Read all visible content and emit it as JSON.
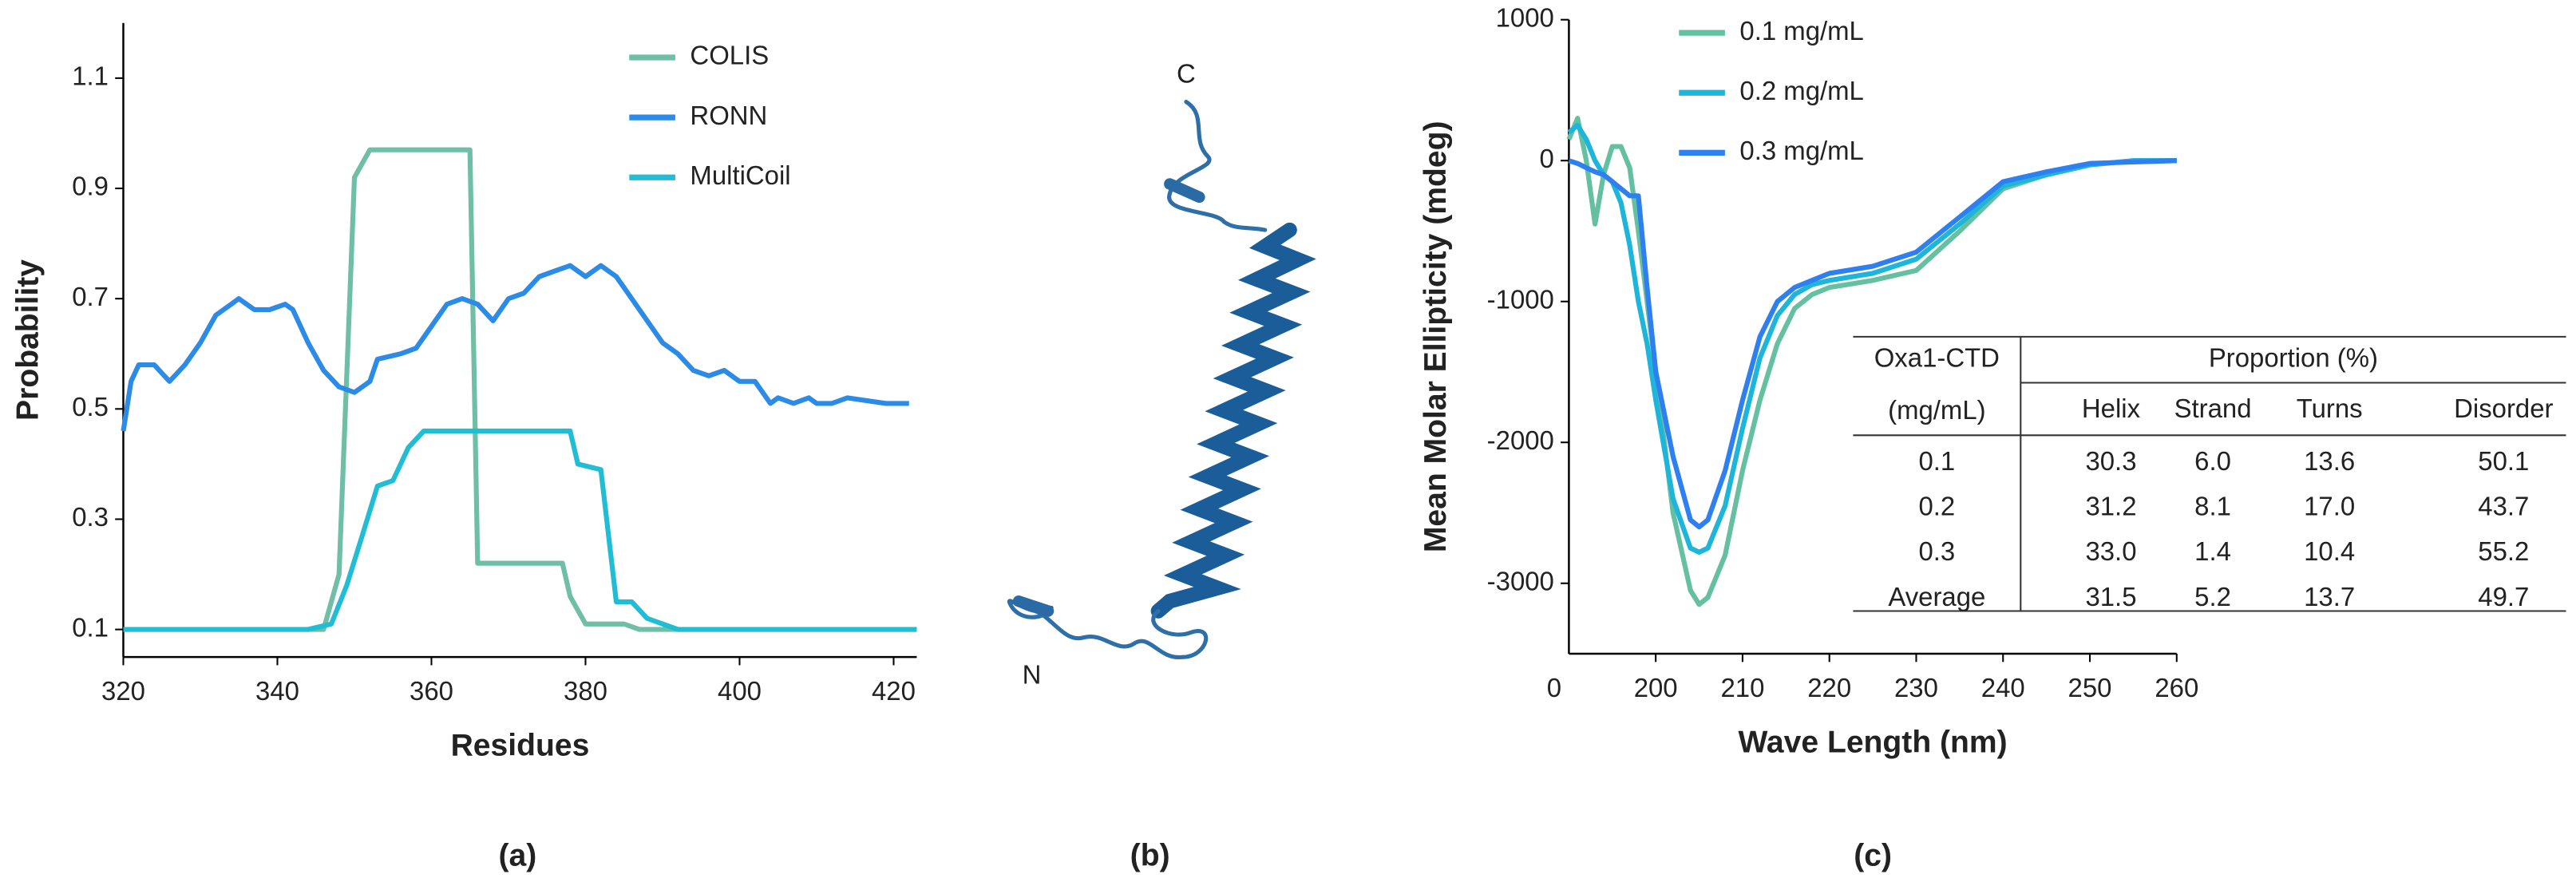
{
  "chart_data": [
    {
      "type": "line",
      "panel_label": "(a)",
      "x_label": "Residues",
      "y_label": "Probability",
      "xlim": [
        320,
        423
      ],
      "xticks": [
        320,
        340,
        360,
        380,
        400,
        420
      ],
      "ylim": [
        0.05,
        1.2
      ],
      "yticks": [
        0.1,
        0.3,
        0.5,
        0.7,
        0.9,
        1.1
      ],
      "legend": "top-right",
      "series": [
        {
          "name": "COLIS",
          "color": "#6fbfa6",
          "x": [
            320,
            346,
            348,
            350,
            352,
            365,
            366,
            377,
            378,
            380,
            385,
            387,
            423
          ],
          "values": [
            0.1,
            0.1,
            0.2,
            0.92,
            0.97,
            0.97,
            0.22,
            0.22,
            0.16,
            0.11,
            0.11,
            0.1,
            0.1
          ]
        },
        {
          "name": "RONN",
          "color": "#2b8be6",
          "x": [
            320,
            321,
            322,
            324,
            326,
            328,
            330,
            332,
            334,
            335,
            337,
            339,
            341,
            342,
            344,
            346,
            348,
            350,
            352,
            353,
            356,
            358,
            360,
            362,
            364,
            366,
            368,
            370,
            372,
            374,
            376,
            378,
            380,
            382,
            384,
            386,
            388,
            390,
            392,
            394,
            396,
            398,
            400,
            402,
            404,
            405,
            407,
            409,
            410,
            412,
            414,
            419,
            422
          ],
          "values": [
            0.46,
            0.55,
            0.58,
            0.58,
            0.55,
            0.58,
            0.62,
            0.67,
            0.69,
            0.7,
            0.68,
            0.68,
            0.69,
            0.68,
            0.62,
            0.57,
            0.54,
            0.53,
            0.55,
            0.59,
            0.6,
            0.61,
            0.65,
            0.69,
            0.7,
            0.69,
            0.66,
            0.7,
            0.71,
            0.74,
            0.75,
            0.76,
            0.74,
            0.76,
            0.74,
            0.7,
            0.66,
            0.62,
            0.6,
            0.57,
            0.56,
            0.57,
            0.55,
            0.55,
            0.51,
            0.52,
            0.51,
            0.52,
            0.51,
            0.51,
            0.52,
            0.51,
            0.51
          ]
        },
        {
          "name": "MultiCoil",
          "color": "#21bdd4",
          "x": [
            320,
            344,
            347,
            349,
            351,
            353,
            355,
            357,
            359,
            378,
            379,
            382,
            384,
            386,
            388,
            392,
            423
          ],
          "values": [
            0.1,
            0.1,
            0.11,
            0.18,
            0.27,
            0.36,
            0.37,
            0.43,
            0.46,
            0.46,
            0.4,
            0.39,
            0.15,
            0.15,
            0.12,
            0.1,
            0.1
          ]
        }
      ]
    },
    {
      "type": "line",
      "panel_label": "(c)",
      "x_label": "Wave Length (nm)",
      "y_label": "Mean Molar Ellipticity (mdeg)",
      "origin_label": "0",
      "xlim": [
        190,
        260
      ],
      "xticks": [
        200,
        210,
        220,
        230,
        240,
        250,
        260
      ],
      "ylim": [
        -3500,
        1000
      ],
      "yticks": [
        -3000,
        -2000,
        -1000,
        0,
        1000
      ],
      "legend": "top-left",
      "x": [
        190,
        191,
        192,
        193,
        194,
        195,
        196,
        197,
        198,
        199,
        200,
        202,
        204,
        205,
        206,
        208,
        210,
        212,
        214,
        216,
        218,
        220,
        225,
        230,
        235,
        240,
        245,
        250,
        255,
        260
      ],
      "series": [
        {
          "name": "0.1 mg/mL",
          "color": "#64c0a0",
          "values": [
            150,
            300,
            0,
            -450,
            -100,
            100,
            100,
            -50,
            -500,
            -1000,
            -1500,
            -2500,
            -3050,
            -3150,
            -3100,
            -2800,
            -2200,
            -1700,
            -1300,
            -1050,
            -950,
            -900,
            -850,
            -780,
            -500,
            -200,
            -100,
            -30,
            0,
            0
          ]
        },
        {
          "name": "0.2 mg/mL",
          "color": "#1db5da",
          "values": [
            200,
            250,
            150,
            0,
            -100,
            -150,
            -300,
            -600,
            -1000,
            -1300,
            -1700,
            -2400,
            -2750,
            -2780,
            -2750,
            -2450,
            -1900,
            -1400,
            -1100,
            -950,
            -880,
            -850,
            -800,
            -700,
            -450,
            -180,
            -100,
            -30,
            0,
            0
          ]
        },
        {
          "name": "0.3 mg/mL",
          "color": "#2e7ff0",
          "values": [
            0,
            -20,
            -50,
            -80,
            -100,
            -150,
            -200,
            -250,
            -250,
            -900,
            -1500,
            -2100,
            -2550,
            -2600,
            -2550,
            -2200,
            -1700,
            -1250,
            -1000,
            -900,
            -850,
            -800,
            -750,
            -650,
            -400,
            -150,
            -80,
            -20,
            -10,
            0
          ]
        }
      ],
      "inset_table": {
        "stub_header": [
          "Oxa1-CTD",
          "(mg/mL)"
        ],
        "group_header": "Proportion (%)",
        "columns": [
          "Helix",
          "Strand",
          "Turns",
          "Disorder"
        ],
        "rows": [
          [
            "0.1",
            "30.3",
            "6.0",
            "13.6",
            "50.1"
          ],
          [
            "0.2",
            "31.2",
            "8.1",
            "17.0",
            "43.7"
          ],
          [
            "0.3",
            "33.0",
            "1.4",
            "10.4",
            "55.2"
          ],
          [
            "Average",
            "31.5",
            "5.2",
            "13.7",
            "49.7"
          ]
        ]
      }
    }
  ],
  "structure_panel": {
    "panel_label": "(b)",
    "c_terminus": "C",
    "n_terminus": "N"
  }
}
